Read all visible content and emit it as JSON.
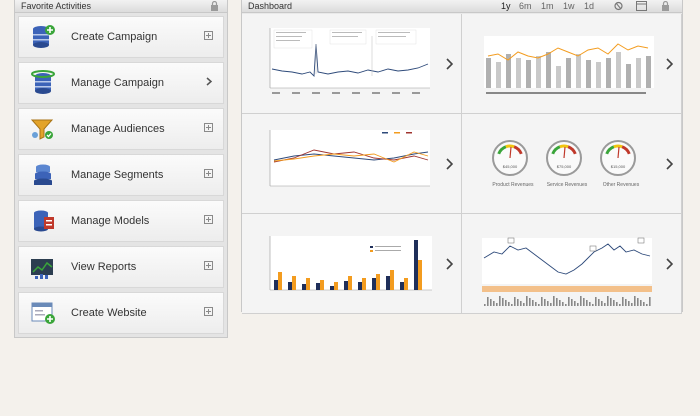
{
  "left_panel": {
    "title": "Favorite Activities",
    "items": [
      {
        "label": "Create Campaign",
        "icon": "database-add-icon",
        "control": "expand"
      },
      {
        "label": "Manage Campaign",
        "icon": "database-refresh-icon",
        "control": "chevron"
      },
      {
        "label": "Manage Audiences",
        "icon": "funnel-icon",
        "control": "expand"
      },
      {
        "label": "Manage Segments",
        "icon": "segments-database-icon",
        "control": "expand"
      },
      {
        "label": "Manage Models",
        "icon": "models-database-icon",
        "control": "expand"
      },
      {
        "label": "View Reports",
        "icon": "reports-chart-icon",
        "control": "expand"
      },
      {
        "label": "Create Website",
        "icon": "website-icon",
        "control": "expand"
      }
    ]
  },
  "dashboard": {
    "title": "Dashboard",
    "ranges": [
      "1y",
      "6m",
      "1m",
      "1w",
      "1d"
    ],
    "selected_range": "1y",
    "gauges": {
      "labels": [
        "Product Revenues",
        "Service Revenues",
        "Other Revenues"
      ],
      "values": [
        "$45,000",
        "$75,000",
        "$15,000"
      ]
    }
  },
  "colors": {
    "accent_orange": "#f39c1f",
    "navy": "#1f2f5a",
    "line_blue": "#2e4a7a",
    "tile_bg": "#f4f4f4"
  }
}
